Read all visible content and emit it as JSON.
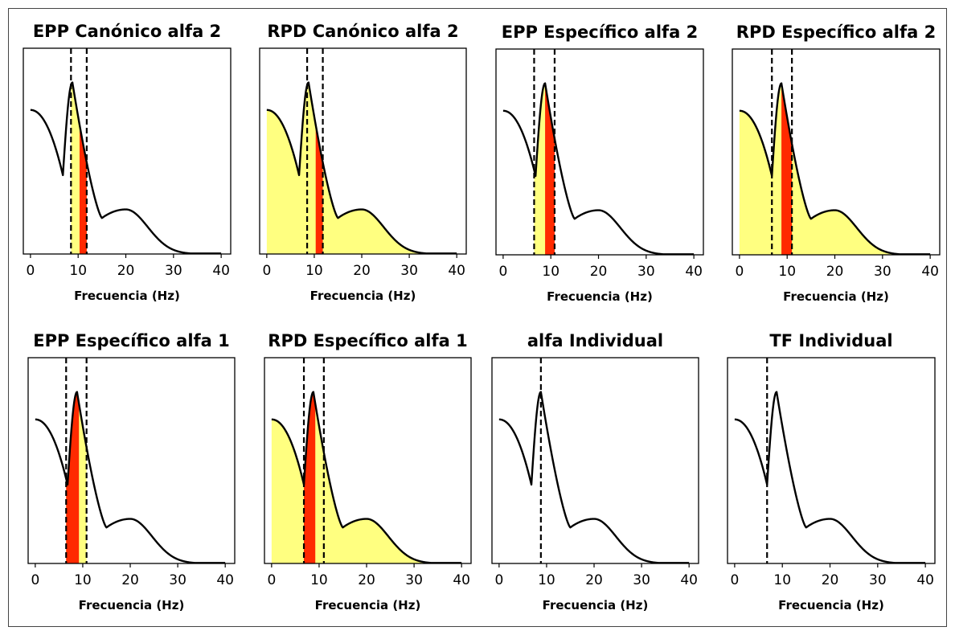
{
  "figure": {
    "colors": {
      "line": "#000000",
      "yellow_band": "#ffff80",
      "red_band": "#ff2a00",
      "background": "#ffffff"
    }
  },
  "chart_data": [
    {
      "type": "area",
      "title": "EPP Canónico alfa 2",
      "xlabel": "Frecuencia (Hz)",
      "xticks": [
        "0",
        "10",
        "20",
        "30",
        "40"
      ],
      "xlim": [
        -1.5,
        42
      ],
      "ylim": [
        0,
        1.2
      ],
      "dashed_lines": [
        8.5,
        11.8
      ],
      "yellow_band": [
        8.5,
        11.8
      ],
      "red_band": [
        10.3,
        11.8
      ],
      "grid": false,
      "curve": {
        "minimum_freq": 6.8,
        "peak_freq": 8.8,
        "peak_height": 1.0
      }
    },
    {
      "type": "area",
      "title": "RPD Canónico alfa 2",
      "xlabel": "Frecuencia (Hz)",
      "xticks": [
        "0",
        "10",
        "20",
        "30",
        "40"
      ],
      "xlim": [
        -1.5,
        42
      ],
      "ylim": [
        0,
        1.2
      ],
      "dashed_lines": [
        8.5,
        11.8
      ],
      "yellow_band": [
        0,
        40
      ],
      "red_band": [
        10.3,
        11.8
      ],
      "grid": false,
      "curve": {
        "minimum_freq": 6.8,
        "peak_freq": 8.8,
        "peak_height": 1.0
      }
    },
    {
      "type": "area",
      "title": "EPP Específico alfa 2",
      "xlabel": "Frecuencia (Hz)",
      "xticks": [
        "0",
        "10",
        "20",
        "30",
        "40"
      ],
      "xlim": [
        -1.5,
        42
      ],
      "ylim": [
        0,
        1.2
      ],
      "dashed_lines": [
        6.5,
        10.8
      ],
      "yellow_band": [
        6.5,
        10.8
      ],
      "red_band": [
        8.8,
        10.8
      ],
      "grid": false,
      "curve": {
        "minimum_freq": 6.8,
        "peak_freq": 8.8,
        "peak_height": 1.0
      }
    },
    {
      "type": "area",
      "title": "RPD Específico alfa 2",
      "xlabel": "Frecuencia (Hz)",
      "xticks": [
        "0",
        "10",
        "20",
        "30",
        "40"
      ],
      "xlim": [
        -1.5,
        42
      ],
      "ylim": [
        0,
        1.2
      ],
      "dashed_lines": [
        6.8,
        11.0
      ],
      "yellow_band": [
        0,
        40
      ],
      "red_band": [
        8.8,
        11.0
      ],
      "grid": false,
      "curve": {
        "minimum_freq": 6.8,
        "peak_freq": 8.8,
        "peak_height": 1.0
      }
    },
    {
      "type": "area",
      "title": "EPP Específico alfa 1",
      "xlabel": "Frecuencia (Hz)",
      "xticks": [
        "0",
        "10",
        "20",
        "30",
        "40"
      ],
      "xlim": [
        -1.5,
        42
      ],
      "ylim": [
        0,
        1.2
      ],
      "dashed_lines": [
        6.5,
        10.8
      ],
      "yellow_band": [
        6.5,
        10.8
      ],
      "red_band": [
        6.5,
        9.2
      ],
      "grid": false,
      "curve": {
        "minimum_freq": 6.8,
        "peak_freq": 8.8,
        "peak_height": 1.0
      }
    },
    {
      "type": "area",
      "title": "RPD Específico alfa 1",
      "xlabel": "Frecuencia (Hz)",
      "xticks": [
        "0",
        "10",
        "20",
        "30",
        "40"
      ],
      "xlim": [
        -1.5,
        42
      ],
      "ylim": [
        0,
        1.2
      ],
      "dashed_lines": [
        6.8,
        11.0
      ],
      "yellow_band": [
        0,
        40
      ],
      "red_band": [
        6.8,
        9.2
      ],
      "grid": false,
      "curve": {
        "minimum_freq": 6.8,
        "peak_freq": 8.8,
        "peak_height": 1.0
      }
    },
    {
      "type": "line",
      "title": "alfa Individual",
      "xlabel": "Frecuencia (Hz)",
      "xticks": [
        "0",
        "10",
        "20",
        "30",
        "40"
      ],
      "xlim": [
        -1.5,
        42
      ],
      "ylim": [
        0,
        1.2
      ],
      "dashed_lines": [
        8.8
      ],
      "yellow_band": null,
      "red_band": null,
      "grid": false,
      "curve": {
        "minimum_freq": 6.8,
        "peak_freq": 8.8,
        "peak_height": 1.0
      }
    },
    {
      "type": "line",
      "title": "TF Individual",
      "xlabel": "Frecuencia (Hz)",
      "xticks": [
        "0",
        "10",
        "20",
        "30",
        "40"
      ],
      "xlim": [
        -1.5,
        42
      ],
      "ylim": [
        0,
        1.2
      ],
      "dashed_lines": [
        6.8
      ],
      "yellow_band": null,
      "red_band": null,
      "grid": false,
      "curve": {
        "minimum_freq": 6.8,
        "peak_freq": 8.8,
        "peak_height": 1.0
      }
    }
  ]
}
